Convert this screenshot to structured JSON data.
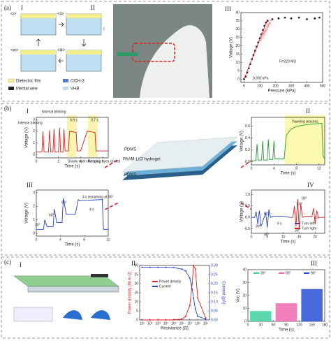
{
  "figure": {
    "panel_labels": [
      "(a)",
      "(b)",
      "(c)"
    ],
    "a_schematic": {
      "stage_labels": [
        "I",
        "II"
      ],
      "states": [
        "<i>",
        "<ii>",
        "<iv>",
        "<iii>"
      ],
      "current": "I",
      "legend": [
        "Dielectric film",
        "ClCH-3",
        "Mental wire",
        "VHB"
      ]
    },
    "b_center": {
      "layers": [
        "PDMS",
        "PAAM-LiCl hydrogel",
        "PDMS"
      ]
    },
    "c_schematic": {
      "label": "I"
    }
  },
  "chart_data": [
    {
      "type": "scatter",
      "panel": "III",
      "xlabel": "Pressure (kPa)",
      "ylabel": "Voltage (V)",
      "xlim": [
        -20,
        500
      ],
      "ylim": [
        -2,
        40
      ],
      "xticks": [
        0,
        100,
        200,
        300,
        400,
        500
      ],
      "yticks": [
        0,
        5,
        10,
        15,
        20,
        25,
        30,
        35,
        40
      ],
      "series": [
        {
          "color": "#222222",
          "x": [
            0,
            10,
            20,
            30,
            40,
            50,
            60,
            70,
            80,
            90,
            100,
            110,
            120,
            130,
            140,
            150,
            180,
            220,
            260,
            300,
            350,
            400,
            450,
            480
          ],
          "values": [
            0,
            1.5,
            4,
            6.5,
            9,
            12,
            14.5,
            17,
            19.5,
            22,
            24.5,
            27,
            29.5,
            32,
            34,
            35,
            36,
            36.5,
            37,
            36.5,
            37,
            36,
            36.5,
            37
          ]
        },
        {
          "color": "#e02020",
          "mode": "line",
          "x": [
            0,
            150
          ],
          "values": [
            0,
            36
          ]
        }
      ],
      "annotations": [
        "S=0.0998 kPa-1",
        "0.392 kPa",
        "R=220 MΩ"
      ]
    },
    {
      "type": "line",
      "panel": "I",
      "xlabel": "Time (s)",
      "ylabel": "Voltage (V)",
      "xlim": [
        0,
        6.5
      ],
      "ylim": [
        -0.3,
        3.2
      ],
      "xticks": [
        0,
        2,
        4,
        6
      ],
      "yticks": [
        0,
        1,
        2,
        3
      ],
      "series": [
        {
          "color": "#d42020",
          "x": [
            0,
            0.5,
            0.6,
            0.7,
            1.1,
            1.2,
            1.3,
            1.5,
            1.6,
            1.7,
            2.0,
            2.1,
            2.2,
            2.4,
            2.5,
            2.6,
            2.9,
            3.0,
            3.6,
            3.7,
            4.0,
            4.6,
            4.7,
            5.3,
            5.4,
            5.6,
            6.0,
            6.5
          ],
          "values": [
            0.2,
            0.2,
            2.0,
            0.2,
            0.2,
            2.1,
            0.2,
            0.2,
            2.2,
            0.2,
            0.2,
            2.3,
            0.2,
            0.2,
            2.2,
            0.3,
            0.3,
            2.0,
            1.9,
            0.3,
            0.3,
            2.0,
            2.0,
            1.9,
            0.3,
            0.3,
            0.3,
            0.3
          ]
        }
      ],
      "annotations": [
        "Intense blinking",
        "Normal blinking",
        "0.9 s",
        "0.7 s",
        "Slowly open the eyes",
        "Keeping eyes closed"
      ]
    },
    {
      "type": "line",
      "panel": "II",
      "xlabel": "Time (s)",
      "ylabel": "Voltage (V)",
      "xlim": [
        0,
        13
      ],
      "ylim": [
        -0.05,
        0.75
      ],
      "xticks": [
        0,
        4,
        8,
        12
      ],
      "yticks": [
        {
          "value": 0,
          "label": "0.0"
        },
        0.2,
        0.4,
        0.6
      ],
      "series": [
        {
          "color": "#1f9a2a",
          "x": [
            0,
            0.8,
            1,
            1.2,
            1.8,
            2,
            2.2,
            2.8,
            3,
            3.2,
            3.8,
            4,
            4.2,
            5.8,
            6.2,
            7,
            8,
            10,
            12.5,
            12.7,
            13
          ],
          "values": [
            0.02,
            0.02,
            0.3,
            0.03,
            0.03,
            0.35,
            0.03,
            0.03,
            0.38,
            0.04,
            0.04,
            0.35,
            0.05,
            0.05,
            0.45,
            0.55,
            0.6,
            0.63,
            0.65,
            0.1,
            0.05
          ]
        }
      ],
      "annotations": [
        "Yawning process"
      ]
    },
    {
      "type": "line",
      "panel": "III",
      "xlabel": "Time (s)",
      "ylabel": "Voltage (V)",
      "xlim": [
        0,
        12
      ],
      "ylim": [
        -0.2,
        3.2
      ],
      "xticks": [
        0,
        4,
        8,
        12
      ],
      "yticks": [
        0,
        1,
        2,
        3
      ],
      "series": [
        {
          "color": "#2244cc",
          "x": [
            0,
            1.2,
            1.4,
            1.8,
            2.8,
            3.0,
            3.4,
            4.3,
            4.5,
            5,
            6.5,
            7,
            7.2,
            11,
            11.2,
            12
          ],
          "values": [
            0.3,
            0.3,
            1.0,
            0.5,
            0.5,
            1.8,
            0.8,
            0.8,
            2.6,
            1.4,
            1.4,
            2.5,
            2.4,
            2.5,
            0.3,
            0.3
          ]
        }
      ],
      "annotations": [
        "30°",
        "60°",
        "90°",
        "4 s remaining at 90°",
        "4 s"
      ]
    },
    {
      "type": "line",
      "panel": "IV",
      "xlabel": "Time (s)",
      "ylabel": "Voltage (V)",
      "xlim": [
        0,
        23
      ],
      "ylim": [
        -0.7,
        1.2
      ],
      "xticks": [
        0,
        5,
        10,
        15,
        20
      ],
      "yticks": [
        {
          "value": 1,
          "label": "1.0"
        },
        0.5,
        {
          "value": 0,
          "label": "0.0"
        },
        -0.5
      ],
      "series": [
        {
          "name": "Turn left",
          "color": "#2244cc",
          "x": [
            0,
            1,
            1.5,
            2,
            2.5,
            3,
            4,
            4.5,
            5,
            5.5,
            6,
            7,
            10,
            12
          ],
          "values": [
            0,
            0,
            0.25,
            -0.3,
            0.3,
            -0.4,
            0,
            0.2,
            -0.45,
            0.35,
            0,
            0.05,
            0.05,
            0
          ]
        },
        {
          "name": "Turn right",
          "color": "#d42020",
          "x": [
            12,
            13,
            13.5,
            14,
            14.5,
            15,
            15.5,
            16,
            17,
            19,
            19.5,
            20,
            20.5,
            21,
            23
          ],
          "values": [
            0,
            0,
            0.5,
            -0.4,
            0.8,
            -0.5,
            0.6,
            0,
            0.05,
            0.05,
            0.4,
            -0.3,
            0.3,
            0,
            0
          ]
        }
      ],
      "annotations": [
        "60°",
        "30°",
        "90°",
        "4 s",
        "60°",
        "90°",
        "30°",
        "4 s"
      ]
    },
    {
      "type": "line",
      "panel": "II",
      "xlabel": "Resistance (Ω)",
      "ylabel": "Power density (W m-2)",
      "y2label": "Current (μA)",
      "xlog": true,
      "xlim": [
        5,
        3000000000
      ],
      "xticks": [
        {
          "value": 10,
          "label": "10¹"
        },
        {
          "value": 100,
          "label": "10²"
        },
        {
          "value": 1000,
          "label": "10³"
        },
        {
          "value": 10000,
          "label": "10⁴"
        },
        {
          "value": 100000,
          "label": "10⁵"
        },
        {
          "value": 1000000,
          "label": "10⁶"
        },
        {
          "value": 10000000,
          "label": "10⁷"
        },
        {
          "value": 100000000,
          "label": "10⁸"
        },
        {
          "value": 1000000000,
          "label": "10⁹"
        }
      ],
      "ylim": [
        0,
        30
      ],
      "yticks": [
        0,
        5,
        10,
        15,
        20,
        25,
        30
      ],
      "y2lim": [
        0,
        0.3
      ],
      "y2ticks": [
        {
          "value": 0,
          "label": "0.00"
        },
        0.05,
        {
          "value": 0.1,
          "label": "0.10"
        },
        0.15,
        {
          "value": 0.2,
          "label": "0.20"
        },
        0.25,
        {
          "value": 0.3,
          "label": "0.30"
        }
      ],
      "series": [
        {
          "name": "Power density",
          "color": "#e02020",
          "x": [
            10,
            100,
            1000,
            10000,
            100000,
            1000000,
            3000000,
            10000000,
            20000000,
            30000000,
            50000000,
            100000000,
            1000000000
          ],
          "values": [
            0,
            0,
            0,
            0,
            0.1,
            0.5,
            2,
            8,
            20,
            30,
            28,
            12,
            1
          ]
        },
        {
          "name": "Current",
          "color": "#2244cc",
          "axis": "y2",
          "x": [
            10,
            100,
            1000,
            10000,
            100000,
            1000000,
            3000000,
            10000000,
            20000000,
            30000000,
            50000000,
            100000000,
            1000000000
          ],
          "values": [
            0.29,
            0.29,
            0.29,
            0.29,
            0.288,
            0.28,
            0.27,
            0.23,
            0.17,
            0.12,
            0.06,
            0.02,
            0.005
          ]
        }
      ]
    },
    {
      "type": "area",
      "panel": "III",
      "xlabel": "Time (s)",
      "ylabel": "Voc (V)",
      "xlim": [
        0,
        180
      ],
      "ylim": [
        0,
        40
      ],
      "xticks": [
        0,
        30,
        60,
        90,
        120,
        150,
        180
      ],
      "yticks": [
        0,
        10,
        20,
        30,
        40
      ],
      "series": [
        {
          "name": "30°",
          "color": "#3fd0a0",
          "x": [
            5,
            55
          ],
          "values": [
            8,
            8
          ]
        },
        {
          "name": "60°",
          "color": "#f06ab0",
          "x": [
            65,
            115
          ],
          "values": [
            14,
            14
          ]
        },
        {
          "name": "90°",
          "color": "#2850d8",
          "x": [
            125,
            175
          ],
          "values": [
            25,
            25
          ]
        }
      ]
    }
  ]
}
